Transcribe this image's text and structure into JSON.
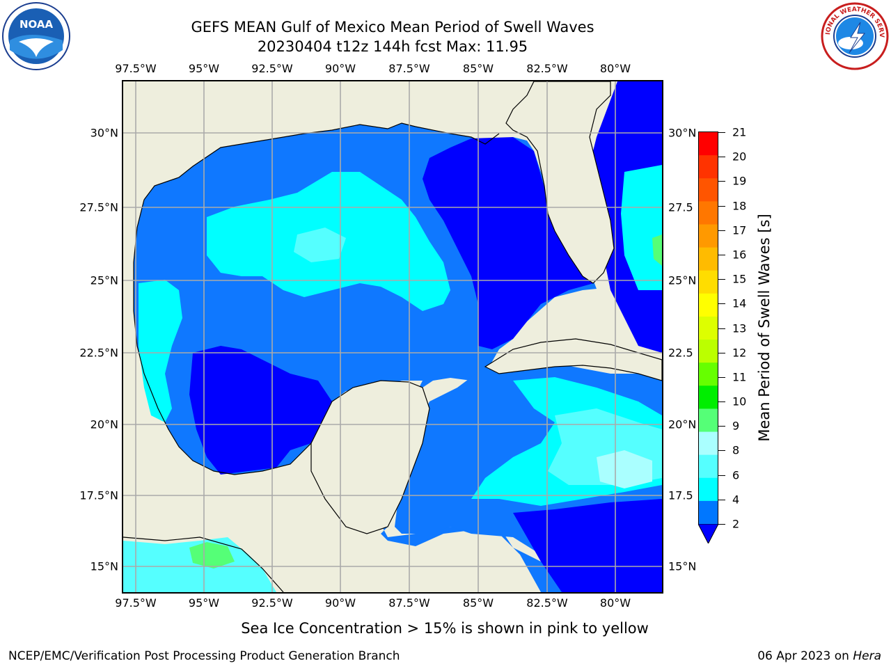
{
  "title_line1": "GEFS MEAN Gulf of Mexico Mean Period of Swell Waves",
  "title_line2": "20230404 t12z 144h fcst   Max: 11.95",
  "lon_labels": [
    "97.5°W",
    "95°W",
    "92.5°W",
    "90°W",
    "87.5°W",
    "85°W",
    "82.5°W",
    "80°W"
  ],
  "lat_labels_left": [
    "30°N",
    "27.5°N",
    "25°N",
    "22.5°N",
    "20°N",
    "17.5°N",
    "15°N"
  ],
  "lat_labels_right": [
    "30°N",
    "27.5",
    "25°N",
    "22.5",
    "20°N",
    "17.5",
    "15°N"
  ],
  "colorbar": {
    "label": "Mean Period of Swell Waves [s]",
    "ticks": [
      "21",
      "20",
      "19",
      "18",
      "17",
      "16",
      "15",
      "14",
      "13",
      "12",
      "11",
      "10",
      "9",
      "8",
      "6",
      "4",
      "2"
    ],
    "colors": [
      "#ff0000",
      "#ff3300",
      "#ff5500",
      "#ff7700",
      "#ff9900",
      "#ffbb00",
      "#ffdd00",
      "#ffff00",
      "#ddff00",
      "#bbff00",
      "#66ff00",
      "#00ee00",
      "#55ff77",
      "#aaffff",
      "#55ffff",
      "#00ffff",
      "#0077ff"
    ],
    "underflow_color": "#0000ff"
  },
  "colors": {
    "land": "#eeeedd",
    "deep_blue": "#0000ff",
    "mid_blue": "#0f78ff",
    "cyan": "#00ffff",
    "light_cyan": "#66ffff",
    "pale_cyan": "#aaffff",
    "green": "#55ff77"
  },
  "footer": {
    "note": "Sea Ice Concentration > 15% is shown in pink to yellow",
    "credit": "NCEP/EMC/Verification Post Processing Product Generation Branch",
    "date_prefix": "06 Apr 2023 on ",
    "host": "Hera"
  },
  "logos": {
    "noaa": "NOAA",
    "nws": "NATIONAL WEATHER SERVICE"
  }
}
